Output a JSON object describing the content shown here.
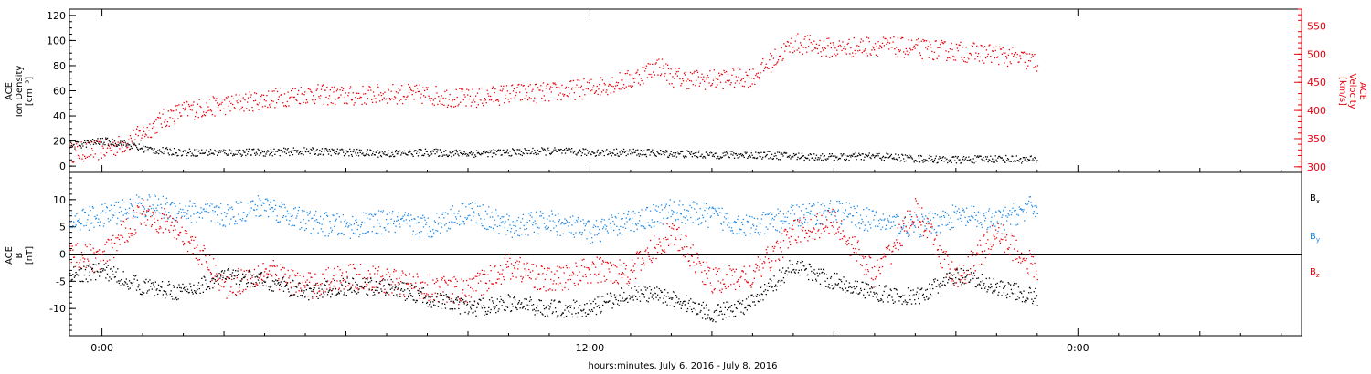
{
  "colors": {
    "density": "#000000",
    "velocity": "#e8000b",
    "bx": "#000000",
    "by": "#1e88e5",
    "bz": "#e8000b",
    "axis": "#000000"
  },
  "xlabel": "hours:minutes, July  6, 2016 - July  8, 2016",
  "chart_data": [
    {
      "type": "scatter",
      "panel": "top",
      "xlim": [
        -0.8,
        29.5
      ],
      "x_ticks": [
        0,
        12,
        24
      ],
      "x_tick_labels": [
        "0:00",
        "12:00",
        "0:00"
      ],
      "left_axis": {
        "label_lines": [
          "ACE",
          "Ion Density",
          "[cm⁻³]"
        ],
        "ylim": [
          -5,
          125
        ],
        "ticks": [
          0,
          20,
          40,
          60,
          80,
          100,
          120
        ],
        "tick_labels": [
          "0",
          "20",
          "40",
          "60",
          "80",
          "100",
          "120"
        ]
      },
      "right_axis": {
        "label_lines": [
          "ACE",
          "Velocity",
          "[km/s]"
        ],
        "ylim": [
          290,
          580
        ],
        "ticks": [
          300,
          350,
          400,
          450,
          500,
          550
        ],
        "tick_labels": [
          "300",
          "350",
          "400",
          "450",
          "500",
          "550"
        ]
      },
      "series": [
        {
          "axis": "left",
          "color_key": "density",
          "x": [
            -0.8,
            0,
            0.5,
            1,
            1.5,
            2,
            3,
            4,
            5,
            6,
            7,
            8,
            9,
            10,
            11,
            12,
            13,
            14,
            15,
            16,
            17,
            18,
            19,
            20,
            21,
            22,
            23
          ],
          "values": [
            16,
            20,
            18,
            14,
            12,
            11,
            11,
            11,
            12,
            11,
            10,
            11,
            10,
            11,
            12,
            11,
            11,
            10,
            9,
            9,
            8,
            7,
            8,
            6,
            5,
            6,
            5
          ]
        },
        {
          "axis": "right",
          "color_key": "velocity",
          "x": [
            -0.8,
            0,
            0.5,
            1,
            1.5,
            2,
            3,
            4,
            5,
            6,
            7,
            8,
            9,
            10,
            11,
            12,
            13,
            13.7,
            14,
            14.5,
            15,
            16,
            17,
            18,
            19,
            20,
            21,
            22,
            23
          ],
          "values": [
            325,
            330,
            340,
            360,
            385,
            400,
            410,
            420,
            430,
            425,
            430,
            428,
            420,
            430,
            432,
            440,
            455,
            480,
            460,
            455,
            455,
            460,
            520,
            510,
            515,
            510,
            505,
            500,
            485
          ]
        }
      ]
    },
    {
      "type": "scatter",
      "panel": "bottom",
      "xlim": [
        -0.8,
        29.5
      ],
      "left_axis": {
        "label_lines": [
          "ACE",
          "B",
          "[nT]"
        ],
        "ylim": [
          -15,
          15
        ],
        "ticks": [
          -10,
          -5,
          0,
          5,
          10
        ],
        "tick_labels": [
          "-10",
          "-5",
          "0",
          "5",
          "10"
        ]
      },
      "zero_line": 0,
      "series": [
        {
          "name": "Bx",
          "color_key": "bx",
          "x": [
            -0.8,
            0,
            1,
            2,
            3,
            4,
            5,
            6,
            7,
            8,
            9,
            10,
            11,
            12,
            13,
            14,
            15,
            16,
            17,
            18,
            19,
            20,
            21,
            22,
            23
          ],
          "values": [
            -4,
            -3,
            -6,
            -7,
            -4,
            -5,
            -7,
            -6,
            -6,
            -8,
            -10,
            -9,
            -10,
            -10,
            -7,
            -8,
            -11,
            -9,
            -2,
            -5,
            -7,
            -8,
            -4,
            -6,
            -8
          ]
        },
        {
          "name": "By",
          "color_key": "by",
          "x": [
            -0.8,
            0,
            1,
            2,
            3,
            4,
            5,
            6,
            7,
            8,
            9,
            10,
            11,
            12,
            13,
            14,
            15,
            16,
            17,
            18,
            19,
            20,
            21,
            22,
            23
          ],
          "values": [
            6,
            7,
            9,
            8,
            7,
            9,
            6,
            5,
            6,
            5,
            8,
            5,
            6,
            4,
            6,
            8,
            7,
            5,
            7,
            8,
            6,
            5,
            7,
            6,
            9
          ]
        },
        {
          "name": "Bz",
          "color_key": "bz",
          "x": [
            -0.8,
            0,
            1,
            2,
            3,
            4,
            5,
            6,
            7,
            8,
            9,
            10,
            11,
            12,
            13,
            14,
            15,
            16,
            17,
            18,
            19,
            20,
            21,
            22,
            23
          ],
          "values": [
            0,
            -1,
            8,
            4,
            -6,
            -3,
            -6,
            -4,
            -5,
            -6,
            -7,
            -2,
            -5,
            -3,
            -3,
            4,
            -5,
            -4,
            4,
            6,
            -4,
            8,
            -5,
            4,
            -3
          ]
        }
      ],
      "legend": [
        {
          "main": "B",
          "sub": "x",
          "color_key": "bx"
        },
        {
          "main": "B",
          "sub": "y",
          "color_key": "by"
        },
        {
          "main": "B",
          "sub": "z",
          "color_key": "bz"
        }
      ]
    }
  ]
}
